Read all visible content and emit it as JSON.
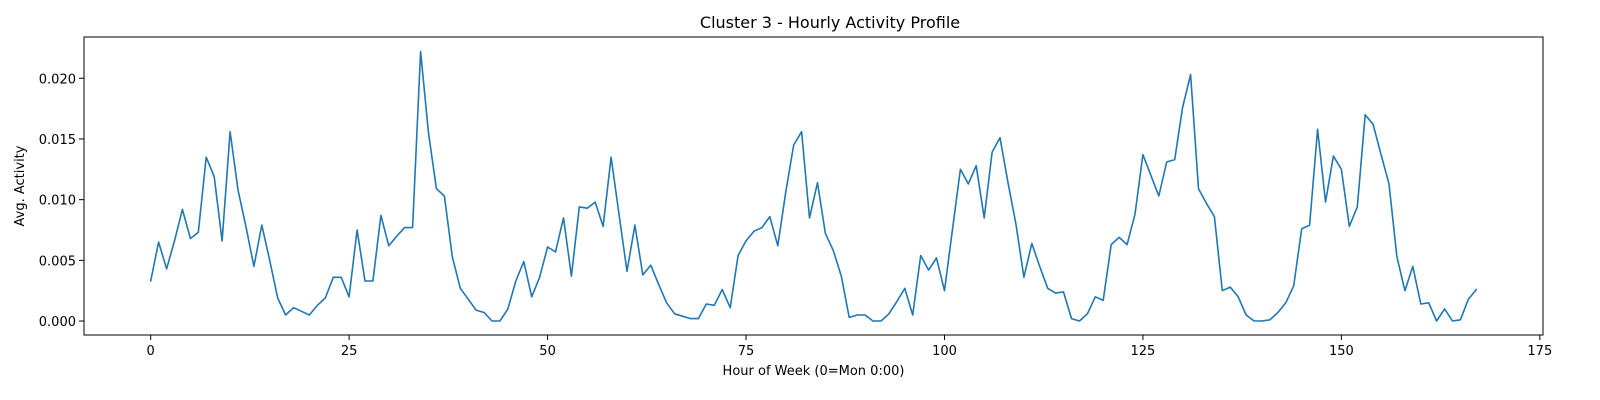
{
  "chart_data": {
    "type": "line",
    "title": "Cluster 3 - Hourly Activity Profile",
    "xlabel": "Hour of Week (0=Mon 0:00)",
    "ylabel": "Avg. Activity",
    "xlim": [
      -8.4,
      175.4
    ],
    "ylim": [
      -0.00115,
      0.0234
    ],
    "xticks": [
      0,
      25,
      50,
      75,
      100,
      125,
      150,
      175
    ],
    "yticks": [
      0.0,
      0.005,
      0.01,
      0.015,
      0.02
    ],
    "ytick_labels": [
      "0.000",
      "0.005",
      "0.010",
      "0.015",
      "0.020"
    ],
    "grid": false,
    "series": [
      {
        "name": "",
        "color": "#1f77b4",
        "x": [
          0,
          1,
          2,
          3,
          4,
          5,
          6,
          7,
          8,
          9,
          10,
          11,
          12,
          13,
          14,
          15,
          16,
          17,
          18,
          19,
          20,
          21,
          22,
          23,
          24,
          25,
          26,
          27,
          28,
          29,
          30,
          31,
          32,
          33,
          34,
          35,
          36,
          37,
          38,
          39,
          40,
          41,
          42,
          43,
          44,
          45,
          46,
          47,
          48,
          49,
          50,
          51,
          52,
          53,
          54,
          55,
          56,
          57,
          58,
          59,
          60,
          61,
          62,
          63,
          64,
          65,
          66,
          67,
          68,
          69,
          70,
          71,
          72,
          73,
          74,
          75,
          76,
          77,
          78,
          79,
          80,
          81,
          82,
          83,
          84,
          85,
          86,
          87,
          88,
          89,
          90,
          91,
          92,
          93,
          94,
          95,
          96,
          97,
          98,
          99,
          100,
          101,
          102,
          103,
          104,
          105,
          106,
          107,
          108,
          109,
          110,
          111,
          112,
          113,
          114,
          115,
          116,
          117,
          118,
          119,
          120,
          121,
          122,
          123,
          124,
          125,
          126,
          127,
          128,
          129,
          130,
          131,
          132,
          133,
          134,
          135,
          136,
          137,
          138,
          139,
          140,
          141,
          142,
          143,
          144,
          145,
          146,
          147,
          148,
          149,
          150,
          151,
          152,
          153,
          154,
          155,
          156,
          157,
          158,
          159,
          160,
          161,
          162,
          163,
          164,
          165,
          166,
          167
        ],
        "y": [
          0.0033,
          0.0065,
          0.0043,
          0.0066,
          0.0092,
          0.0068,
          0.0073,
          0.0135,
          0.0119,
          0.0066,
          0.0156,
          0.0108,
          0.0078,
          0.0045,
          0.0079,
          0.005,
          0.0019,
          0.0005,
          0.0011,
          0.0008,
          0.0005,
          0.0013,
          0.0019,
          0.0036,
          0.0036,
          0.002,
          0.0075,
          0.0033,
          0.0033,
          0.0087,
          0.0062,
          0.007,
          0.0077,
          0.0077,
          0.0222,
          0.0155,
          0.0109,
          0.0103,
          0.0053,
          0.0027,
          0.0018,
          0.0009,
          0.0007,
          0.0,
          0.0,
          0.001,
          0.0033,
          0.0049,
          0.002,
          0.0036,
          0.0061,
          0.0057,
          0.0085,
          0.0037,
          0.0094,
          0.0093,
          0.0098,
          0.0078,
          0.0135,
          0.0088,
          0.0041,
          0.0079,
          0.0038,
          0.0046,
          0.003,
          0.0015,
          0.0006,
          0.0004,
          0.0002,
          0.0002,
          0.0014,
          0.0013,
          0.0026,
          0.0011,
          0.0054,
          0.0066,
          0.0074,
          0.0077,
          0.0086,
          0.0062,
          0.0106,
          0.0145,
          0.0156,
          0.0085,
          0.0114,
          0.0072,
          0.0058,
          0.0037,
          0.0003,
          0.0005,
          0.0005,
          0.0,
          0.0,
          0.0006,
          0.0016,
          0.0027,
          0.0005,
          0.0054,
          0.0042,
          0.0052,
          0.0025,
          0.0075,
          0.0125,
          0.0113,
          0.0128,
          0.0085,
          0.0139,
          0.0151,
          0.0114,
          0.008,
          0.0036,
          0.0064,
          0.0045,
          0.0027,
          0.0023,
          0.0024,
          0.0002,
          0.0,
          0.0006,
          0.002,
          0.0017,
          0.0063,
          0.0069,
          0.0063,
          0.0088,
          0.0137,
          0.012,
          0.0103,
          0.0131,
          0.0133,
          0.0176,
          0.0203,
          0.0109,
          0.0097,
          0.0086,
          0.0025,
          0.0028,
          0.002,
          0.0005,
          0.0,
          0.0,
          0.0001,
          0.0007,
          0.0015,
          0.0029,
          0.0076,
          0.0079,
          0.0158,
          0.0098,
          0.0136,
          0.0125,
          0.0078,
          0.0094,
          0.017,
          0.0162,
          0.0137,
          0.0113,
          0.0053,
          0.0025,
          0.0045,
          0.0014,
          0.0015,
          0.0,
          0.001,
          0.0,
          0.0001,
          0.0018,
          0.0026
        ]
      }
    ]
  }
}
